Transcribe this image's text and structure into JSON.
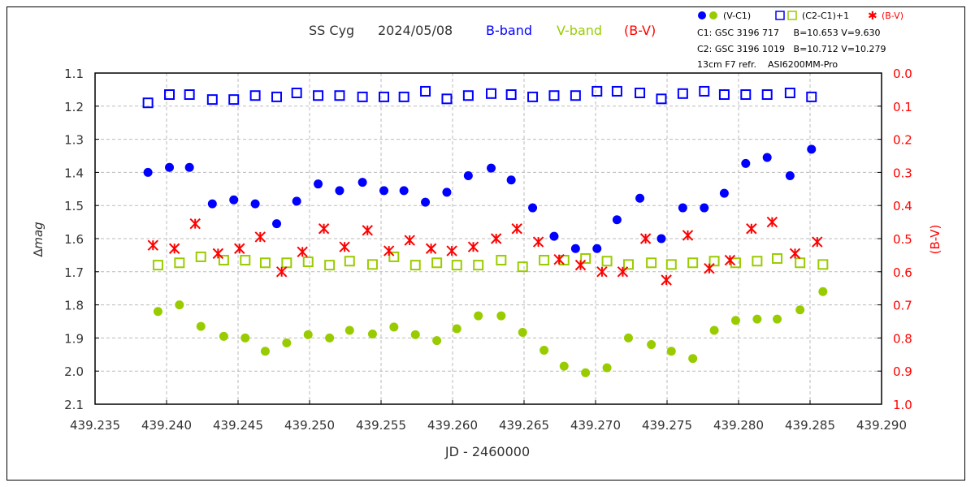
{
  "chart_data": {
    "type": "scatter",
    "title": {
      "object": "SS Cyg",
      "date": "2024/05/08",
      "b_band": "B-band",
      "v_band": "V-band",
      "bv": "(B-V)"
    },
    "xlabel": "JD - 2460000",
    "ylabel": "∆mag",
    "ylabel_right": "(B-V)",
    "xlim": [
      439.235,
      439.29
    ],
    "ylim": [
      1.1,
      2.1
    ],
    "ylim_right": [
      0.0,
      1.0
    ],
    "x_ticks": [
      "439.235",
      "439.240",
      "439.245",
      "439.250",
      "439.255",
      "439.260",
      "439.265",
      "439.270",
      "439.275",
      "439.280",
      "439.285",
      "439.290"
    ],
    "y_ticks": [
      "1.1",
      "1.2",
      "1.3",
      "1.4",
      "1.5",
      "1.6",
      "1.7",
      "1.8",
      "1.9",
      "2.0",
      "2.1"
    ],
    "y_ticks_right": [
      "0.0",
      "0.1",
      "0.2",
      "0.3",
      "0.4",
      "0.5",
      "0.6",
      "0.7",
      "0.8",
      "0.9",
      "1.0"
    ],
    "grid": true,
    "legend": {
      "placement": "top-right",
      "vc1": "(V-C1)",
      "c2c1": "(C2-C1)+1",
      "bv": "(B-V)",
      "c1": "C1: GSC 3196 717     B=10.653 V=9.630",
      "c2": "C2: GSC 3196 1019   B=10.712 V=10.279",
      "equipment": "13cm F7 refr.    ASI6200MM-Pro"
    },
    "colors": {
      "b": "#0000ff",
      "v": "#99cc00",
      "bv": "#ff0000"
    },
    "jd_B": [
      439.2387,
      439.2402,
      439.2416,
      439.2432,
      439.2447,
      439.2462,
      439.2477,
      439.2491,
      439.2506,
      439.2521,
      439.2537,
      439.2552,
      439.2566,
      439.2581,
      439.2596,
      439.2611,
      439.2627,
      439.2641,
      439.2656,
      439.2671,
      439.2686,
      439.2701,
      439.2715,
      439.2731,
      439.2746,
      439.2761,
      439.2776,
      439.279,
      439.2805,
      439.282,
      439.2836,
      439.2851
    ],
    "jd_V": [
      439.2394,
      439.2409,
      439.2424,
      439.244,
      439.2455,
      439.2469,
      439.2484,
      439.2499,
      439.2514,
      439.2528,
      439.2544,
      439.2559,
      439.2574,
      439.2589,
      439.2603,
      439.2618,
      439.2634,
      439.2649,
      439.2664,
      439.2678,
      439.2693,
      439.2708,
      439.2723,
      439.2739,
      439.2753,
      439.2768,
      439.2783,
      439.2798,
      439.2813,
      439.2827,
      439.2843,
      439.2859
    ],
    "series": [
      {
        "name": "V-C1 B-band",
        "marker": "filled-circle",
        "color": "#0000ff",
        "x": "jd_B",
        "values": [
          1.4,
          1.385,
          1.385,
          1.495,
          1.483,
          1.495,
          1.555,
          1.487,
          1.435,
          1.455,
          1.43,
          1.455,
          1.455,
          1.49,
          1.46,
          1.41,
          1.387,
          1.423,
          1.507,
          1.593,
          1.63,
          1.63,
          1.543,
          1.478,
          1.6,
          1.507,
          1.507,
          1.463,
          1.373,
          1.355,
          1.41,
          1.33
        ]
      },
      {
        "name": "V-C1 V-band",
        "marker": "filled-circle",
        "color": "#99cc00",
        "x": "jd_V",
        "values": [
          1.82,
          1.8,
          1.865,
          1.895,
          1.9,
          1.94,
          1.915,
          1.89,
          1.9,
          1.877,
          1.888,
          1.867,
          1.89,
          1.908,
          1.872,
          1.833,
          1.833,
          1.883,
          1.937,
          1.985,
          2.005,
          1.99,
          1.9,
          1.92,
          1.94,
          1.962,
          1.877,
          1.847,
          1.843,
          1.843,
          1.815,
          1.76
        ]
      },
      {
        "name": "C2-C1+1 B-band",
        "marker": "open-square",
        "color": "#0000ff",
        "x": "jd_B",
        "values": [
          1.19,
          1.165,
          1.165,
          1.18,
          1.18,
          1.168,
          1.172,
          1.16,
          1.168,
          1.168,
          1.172,
          1.172,
          1.172,
          1.155,
          1.178,
          1.168,
          1.162,
          1.165,
          1.172,
          1.168,
          1.168,
          1.155,
          1.155,
          1.16,
          1.178,
          1.162,
          1.155,
          1.165,
          1.165,
          1.165,
          1.16,
          1.172
        ]
      },
      {
        "name": "C2-C1+1 V-band",
        "marker": "open-square",
        "color": "#99cc00",
        "x": "jd_V",
        "values": [
          1.68,
          1.673,
          1.655,
          1.665,
          1.665,
          1.673,
          1.673,
          1.67,
          1.68,
          1.668,
          1.678,
          1.655,
          1.68,
          1.673,
          1.68,
          1.68,
          1.665,
          1.685,
          1.665,
          1.665,
          1.66,
          1.668,
          1.678,
          1.673,
          1.678,
          1.673,
          1.668,
          1.673,
          1.668,
          1.66,
          1.673,
          1.678
        ]
      },
      {
        "name": "B-V",
        "marker": "asterisk",
        "color": "#ff0000",
        "x": "midpoint",
        "axis": "right",
        "values": [
          0.52,
          0.53,
          0.455,
          0.545,
          0.53,
          0.495,
          0.6,
          0.54,
          0.47,
          0.525,
          0.475,
          0.537,
          0.505,
          0.53,
          0.537,
          0.525,
          0.5,
          0.47,
          0.51,
          0.563,
          0.58,
          0.6,
          0.6,
          0.5,
          0.625,
          0.49,
          0.59,
          0.565,
          0.47,
          0.45,
          0.545,
          0.51
        ]
      }
    ]
  }
}
